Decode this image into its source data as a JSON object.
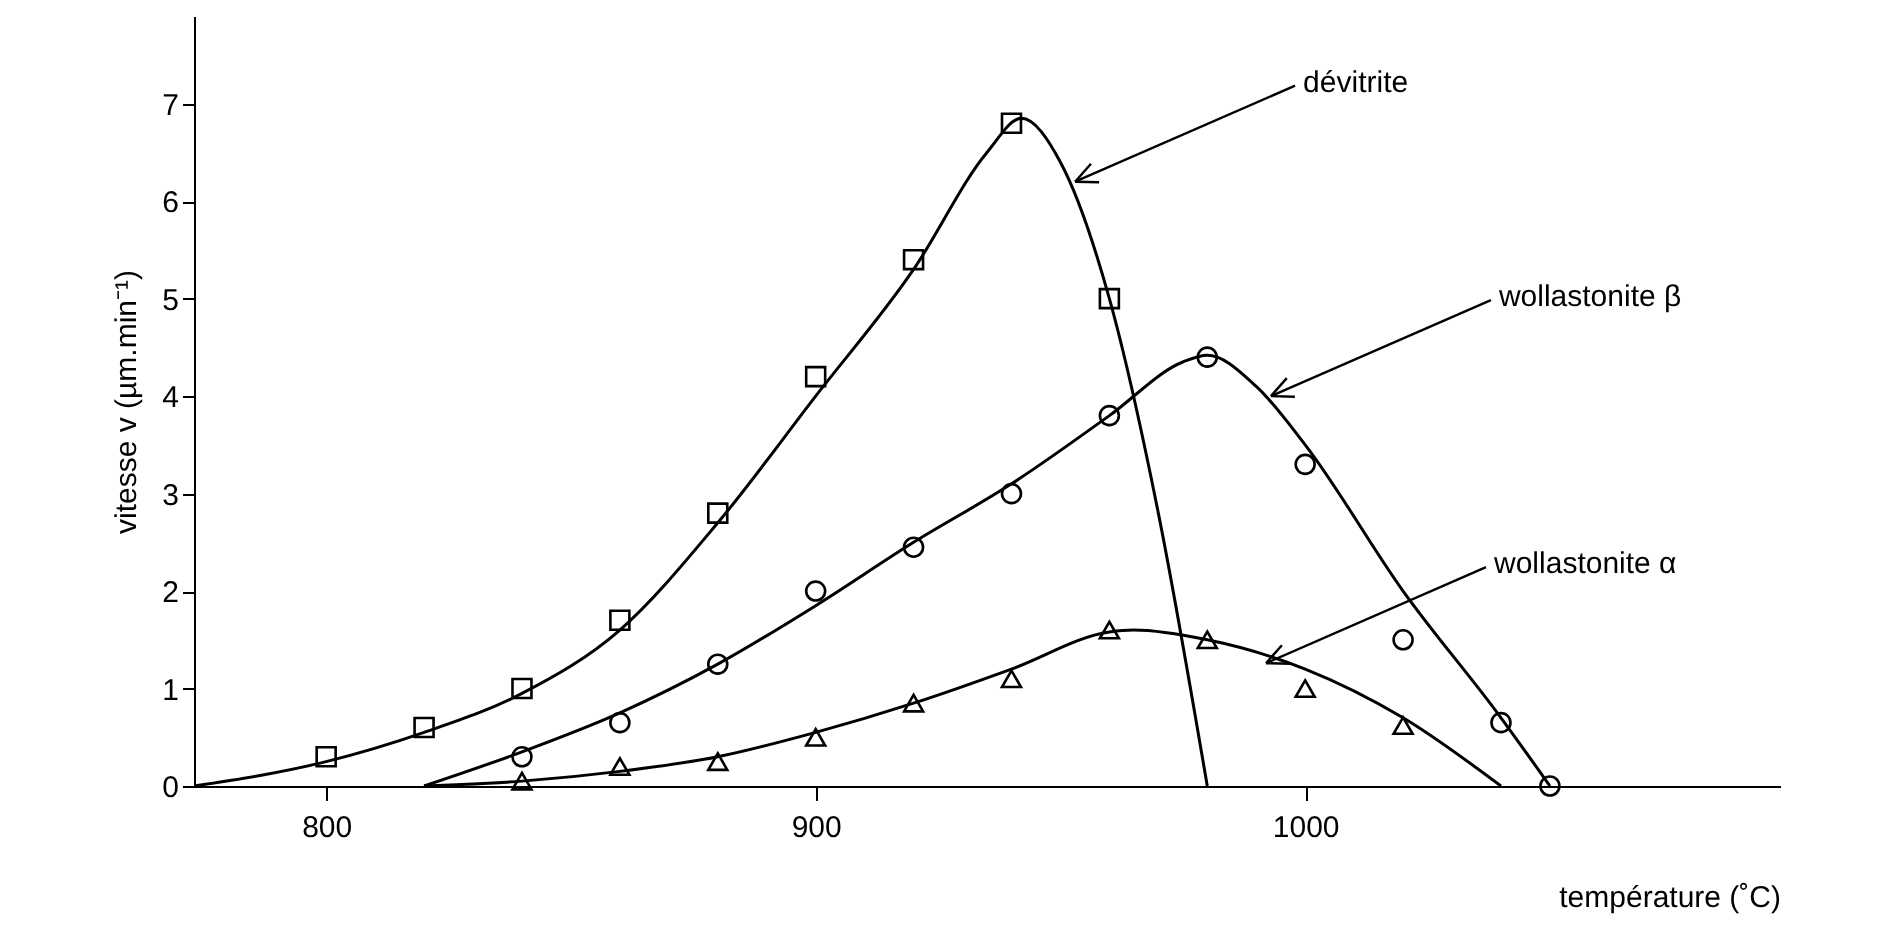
{
  "chart_data": {
    "type": "line",
    "xlabel": "température  (˚C)",
    "ylabel": "vitesse v  (µm.min⁻¹)",
    "xlim": [
      773,
      1097
    ],
    "ylim": [
      0,
      7.9
    ],
    "xticks": [
      800,
      900,
      1000
    ],
    "yticks": [
      0,
      1,
      2,
      3,
      4,
      5,
      6,
      7
    ],
    "grid": false,
    "line_style": "solid",
    "series": [
      {
        "type": "scatter",
        "marker": "square",
        "color": "#000000",
        "x": [
          800,
          820,
          840,
          860,
          880,
          900,
          920,
          940,
          960
        ],
        "values": [
          0.3,
          0.6,
          1.0,
          1.7,
          2.8,
          4.2,
          5.4,
          6.8,
          5.0
        ]
      },
      {
        "type": "scatter",
        "marker": "circle",
        "color": "#000000",
        "x": [
          840,
          860,
          880,
          900,
          920,
          940,
          960,
          980,
          1000,
          1020,
          1040,
          1050
        ],
        "values": [
          0.3,
          0.65,
          1.25,
          2.0,
          2.45,
          3.0,
          3.8,
          4.4,
          3.3,
          1.5,
          0.65,
          0.0
        ]
      },
      {
        "type": "scatter",
        "marker": "triangle",
        "color": "#000000",
        "x": [
          840,
          860,
          880,
          900,
          920,
          940,
          960,
          980,
          1000,
          1020
        ],
        "values": [
          0.05,
          0.2,
          0.25,
          0.5,
          0.85,
          1.1,
          1.6,
          1.5,
          1.0,
          0.62
        ]
      },
      {
        "color": "#000000",
        "x": [
          773,
          800,
          820,
          840,
          860,
          880,
          900,
          920,
          935,
          942,
          950,
          960,
          970,
          980
        ],
        "values": [
          0.0,
          0.25,
          0.55,
          0.95,
          1.6,
          2.7,
          4.0,
          5.3,
          6.5,
          6.85,
          6.4,
          5.0,
          2.8,
          0.0
        ]
      },
      {
        "color": "#000000",
        "x": [
          820,
          840,
          860,
          880,
          900,
          920,
          940,
          960,
          975,
          980,
          990,
          1000,
          1020,
          1040,
          1050
        ],
        "values": [
          0.0,
          0.35,
          0.75,
          1.25,
          1.85,
          2.5,
          3.1,
          3.8,
          4.35,
          4.42,
          4.1,
          3.5,
          2.0,
          0.7,
          0.0
        ]
      },
      {
        "color": "#000000",
        "x": [
          820,
          840,
          860,
          880,
          900,
          920,
          940,
          960,
          965,
          980,
          1000,
          1020,
          1040
        ],
        "values": [
          0.0,
          0.05,
          0.15,
          0.3,
          0.55,
          0.85,
          1.2,
          1.58,
          1.6,
          1.5,
          1.2,
          0.7,
          0.0
        ]
      }
    ],
    "annotations": [
      {
        "text": "dévitrite",
        "x": 953,
        "y": 6.2
      },
      {
        "text": "wollastonite β",
        "x": 993,
        "y": 4.0
      },
      {
        "text": "wollastonite α",
        "x": 992,
        "y": 1.26
      }
    ]
  }
}
